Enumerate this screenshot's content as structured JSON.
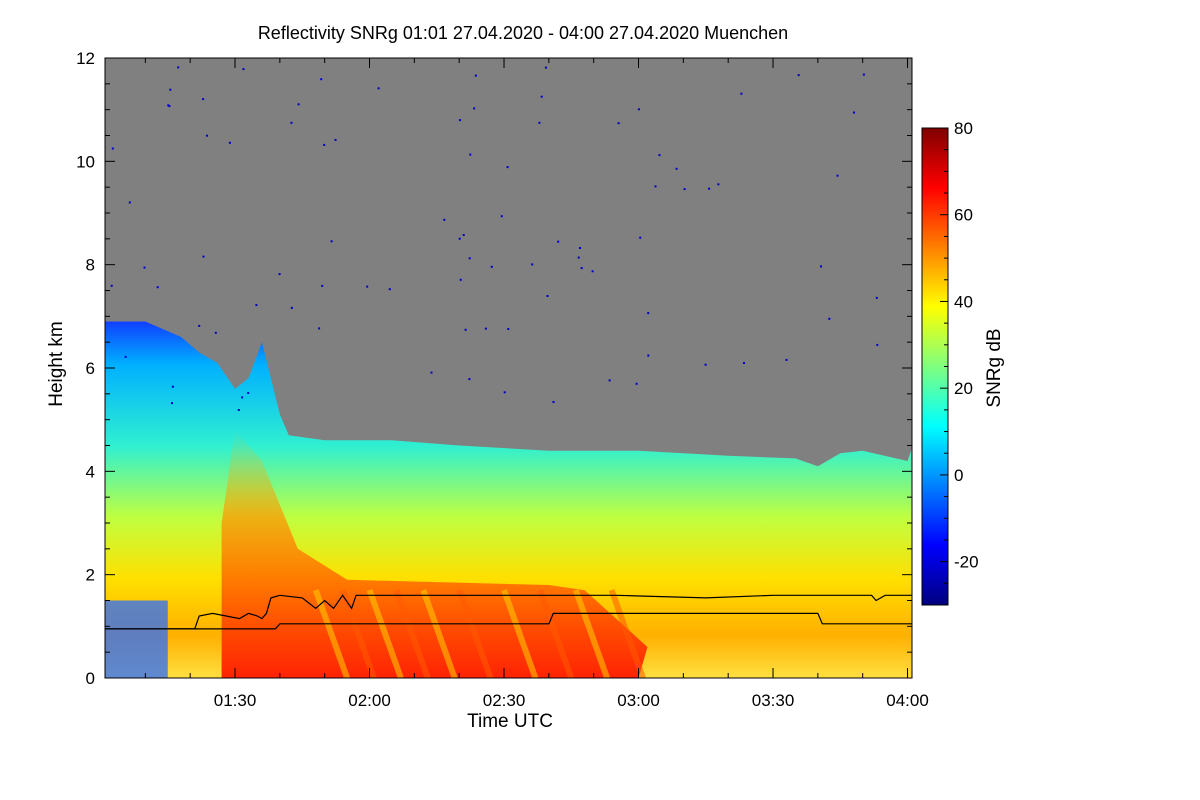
{
  "chart_data": {
    "type": "heatmap",
    "title": "Reflectivity SNRg   01:01 27.04.2020 - 04:00 27.04.2020 Muenchen",
    "xlabel": "Time UTC",
    "ylabel": "Height km",
    "x_range": [
      "01:01",
      "04:00"
    ],
    "x_ticks": [
      "01:30",
      "02:00",
      "02:30",
      "03:00",
      "03:30",
      "04:00"
    ],
    "ylim": [
      0,
      12
    ],
    "y_ticks": [
      "0",
      "2",
      "4",
      "6",
      "8",
      "10",
      "12"
    ],
    "colorbar": {
      "label": "SNRg dB",
      "range": [
        -30,
        80
      ],
      "ticks": [
        "-20",
        "0",
        "20",
        "40",
        "60",
        "80"
      ],
      "colormap": "jet",
      "colors": [
        "#00007f",
        "#0000ff",
        "#007fff",
        "#00ffff",
        "#7fff7f",
        "#ffff00",
        "#ff7f00",
        "#ff0000",
        "#7f0000"
      ]
    },
    "background_color": "#808080",
    "cloud_top_km": [
      [
        61,
        6.9
      ],
      [
        70,
        6.9
      ],
      [
        78,
        6.6
      ],
      [
        82,
        6.3
      ],
      [
        86,
        6.1
      ],
      [
        90,
        5.6
      ],
      [
        93,
        5.8
      ],
      [
        96,
        6.5
      ],
      [
        100,
        5.1
      ],
      [
        102,
        4.7
      ],
      [
        110,
        4.6
      ],
      [
        125,
        4.6
      ],
      [
        140,
        4.5
      ],
      [
        160,
        4.4
      ],
      [
        180,
        4.4
      ],
      [
        200,
        4.3
      ],
      [
        215,
        4.25
      ],
      [
        220,
        4.1
      ],
      [
        225,
        4.35
      ],
      [
        230,
        4.4
      ],
      [
        240,
        4.2
      ],
      [
        241,
        4.45
      ]
    ],
    "series": [
      {
        "name": "upper boundary line",
        "color": "#000000",
        "points": [
          [
            61,
            0.95
          ],
          [
            81,
            0.95
          ],
          [
            82,
            1.2
          ],
          [
            85,
            1.25
          ],
          [
            88,
            1.2
          ],
          [
            91,
            1.15
          ],
          [
            93,
            1.25
          ],
          [
            95,
            1.2
          ],
          [
            96,
            1.15
          ],
          [
            97,
            1.25
          ],
          [
            98,
            1.55
          ],
          [
            100,
            1.6
          ],
          [
            105,
            1.55
          ],
          [
            108,
            1.35
          ],
          [
            110,
            1.5
          ],
          [
            112,
            1.35
          ],
          [
            114,
            1.6
          ],
          [
            116,
            1.35
          ],
          [
            117,
            1.6
          ],
          [
            120,
            1.6
          ],
          [
            150,
            1.6
          ],
          [
            175,
            1.6
          ],
          [
            195,
            1.55
          ],
          [
            210,
            1.6
          ],
          [
            232,
            1.6
          ],
          [
            233,
            1.5
          ],
          [
            235,
            1.6
          ],
          [
            241,
            1.6
          ]
        ]
      },
      {
        "name": "lower boundary line",
        "color": "#000000",
        "points": [
          [
            61,
            0.95
          ],
          [
            99,
            0.95
          ],
          [
            100,
            1.05
          ],
          [
            160,
            1.05
          ],
          [
            161,
            1.25
          ],
          [
            220,
            1.25
          ],
          [
            221,
            1.05
          ],
          [
            241,
            1.05
          ]
        ]
      }
    ]
  }
}
